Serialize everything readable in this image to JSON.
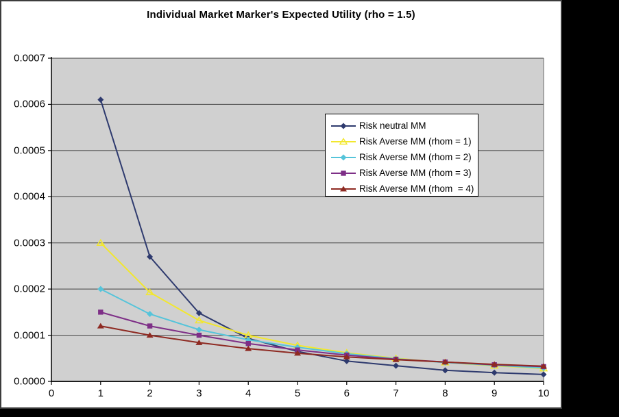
{
  "title": "Individual Market Marker's Expected Utility (rho = 1.5)",
  "chart_data": {
    "type": "line",
    "title": "Individual Market Marker's Expected Utility (rho = 1.5)",
    "xlabel": "",
    "ylabel": "",
    "xlim": [
      0,
      10
    ],
    "ylim": [
      0,
      0.0007
    ],
    "grid": true,
    "plot_bg_color": "#d0d0d0",
    "gridline_color": "#3f3f3f",
    "axis_color": "#000000",
    "legend_position": "inside-upper-right",
    "x_tick_labels": [
      "0",
      "1",
      "2",
      "3",
      "4",
      "5",
      "6",
      "7",
      "8",
      "9",
      "10"
    ],
    "y_tick_labels": [
      "0.0000",
      "0.0001",
      "0.0002",
      "0.0003",
      "0.0004",
      "0.0005",
      "0.0006",
      "0.0007"
    ],
    "x": [
      1,
      2,
      3,
      4,
      5,
      6,
      7,
      8,
      9,
      10
    ],
    "series": [
      {
        "name": "Risk neutral MM",
        "color": "#2e3a6e",
        "marker": "diamond",
        "marker_style": "filled",
        "values": [
          0.00061,
          0.00027,
          0.000148,
          9.3e-05,
          6.5e-05,
          4.4e-05,
          3.4e-05,
          2.4e-05,
          1.9e-05,
          1.5e-05
        ]
      },
      {
        "name": "Risk Averse MM (rhom = 1)",
        "color": "#f2e72e",
        "marker": "triangle",
        "marker_style": "open",
        "values": [
          0.0003,
          0.000193,
          0.000132,
          0.0001,
          7.8e-05,
          6.2e-05,
          5e-05,
          4.1e-05,
          3.4e-05,
          2.8e-05
        ]
      },
      {
        "name": "Risk Averse MM (rhom = 2)",
        "color": "#55c4da",
        "marker": "diamond",
        "marker_style": "filled",
        "values": [
          0.0002,
          0.000146,
          0.000112,
          9e-05,
          7.4e-05,
          6e-05,
          4.9e-05,
          4.1e-05,
          3.5e-05,
          2.9e-05
        ]
      },
      {
        "name": "Risk Averse MM (rhom = 3)",
        "color": "#7e2f87",
        "marker": "square",
        "marker_style": "filled",
        "values": [
          0.00015,
          0.00012,
          0.0001,
          8.2e-05,
          6.8e-05,
          5.7e-05,
          4.8e-05,
          4.2e-05,
          3.6e-05,
          3.2e-05
        ]
      },
      {
        "name": "Risk Averse MM (rhom  = 4)",
        "color": "#8e2a22",
        "marker": "triangle",
        "marker_style": "filled",
        "values": [
          0.00012,
          0.0001,
          8.4e-05,
          7.1e-05,
          6.1e-05,
          5.3e-05,
          4.7e-05,
          4.2e-05,
          3.7e-05,
          3.3e-05
        ]
      }
    ]
  }
}
